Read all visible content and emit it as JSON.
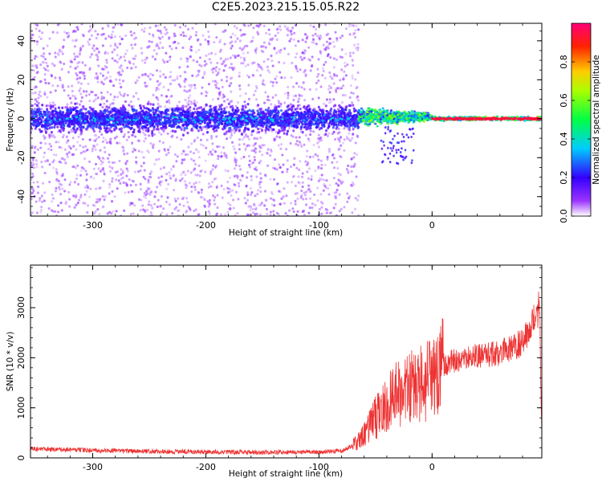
{
  "page_title": "C2E5.2023.215.15.05.R22",
  "chart_data": [
    {
      "type": "heatmap",
      "title": "C2E5.2023.215.15.05.R22",
      "xlabel": "Height of straight line (km)",
      "ylabel": "Frequency (Hz)",
      "xlim": [
        -355,
        97
      ],
      "ylim": [
        -50,
        49
      ],
      "xticks": [
        -300,
        -200,
        -100,
        0
      ],
      "yticks": [
        -40,
        -20,
        0,
        20,
        40
      ],
      "colorbar": {
        "label": "Normalized spectral amplitude",
        "range": [
          0,
          1
        ],
        "ticks": [
          0.0,
          0.2,
          0.4,
          0.6,
          0.8
        ],
        "colors": [
          "#ffffff",
          "#7a00ff",
          "#0000ff",
          "#00ffff",
          "#00ff00",
          "#ffff00",
          "#ff0000",
          "#ff0077"
        ]
      },
      "description_regions": [
        {
          "x_range": [
            -355,
            -65
          ],
          "freq_spread_hz": [
            -50,
            49
          ],
          "typical_amplitude": 0.05,
          "core_band_hz": [
            -12,
            12
          ],
          "core_amplitude": 0.2
        },
        {
          "x_range": [
            -65,
            0
          ],
          "freq_spread_hz": [
            -10,
            8
          ],
          "typical_amplitude": 0.45
        },
        {
          "x_range": [
            0,
            97
          ],
          "freq_spread_hz": [
            -2,
            2
          ],
          "typical_amplitude": 0.9
        }
      ]
    },
    {
      "type": "line",
      "xlabel": "Height of straight line (km)",
      "ylabel": "SNR (10 * v/v)",
      "xlim": [
        -355,
        97
      ],
      "ylim": [
        0,
        3850
      ],
      "xticks": [
        -300,
        -200,
        -100,
        0
      ],
      "yticks": [
        0,
        1000,
        2000,
        3000
      ],
      "series": [
        {
          "color": "#ee3333",
          "x": [
            -355,
            -330,
            -300,
            -250,
            -200,
            -150,
            -100,
            -80,
            -70,
            -60,
            -50,
            -40,
            -30,
            -20,
            -10,
            0,
            10,
            20,
            30,
            40,
            50,
            60,
            70,
            80,
            85,
            90,
            95,
            97
          ],
          "y": [
            180,
            170,
            150,
            130,
            120,
            110,
            120,
            140,
            250,
            450,
            800,
            1050,
            1300,
            1400,
            1450,
            1550,
            1850,
            1950,
            2000,
            2050,
            2050,
            2100,
            2200,
            2300,
            2500,
            2800,
            3000,
            400
          ]
        }
      ]
    }
  ]
}
